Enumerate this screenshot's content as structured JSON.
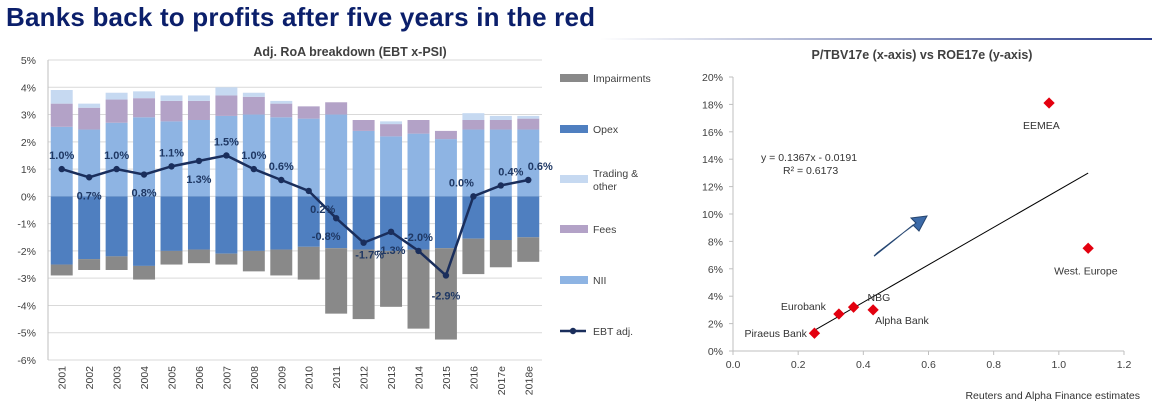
{
  "header": {
    "title": "Banks back to profits after five years in the red"
  },
  "colors": {
    "title": "#0b1f6b",
    "impairments": "#898989",
    "opex": "#4f7fc0",
    "trading": "#c6d9f1",
    "fees": "#b3a2c7",
    "nii": "#8eb4e3",
    "ebt": "#1a2e5c",
    "scatter": "#e3000f"
  },
  "chart_data": [
    {
      "type": "bar",
      "title": "Adj. RoA breakdown  (EBT x-PSI)",
      "categories": [
        "2001",
        "2002",
        "2003",
        "2004",
        "2005",
        "2006",
        "2007",
        "2008",
        "2009",
        "2010",
        "2011",
        "2012",
        "2013",
        "2014",
        "2015",
        "2016",
        "2017e",
        "2018e"
      ],
      "yticks": [
        "5%",
        "4%",
        "3%",
        "2%",
        "1%",
        "0%",
        "-1%",
        "-2%",
        "-3%",
        "-4%",
        "-5%",
        "-6%"
      ],
      "ylim": [
        -6,
        5
      ],
      "series": [
        {
          "name": "NII",
          "values": [
            2.55,
            2.45,
            2.7,
            2.9,
            2.75,
            2.8,
            2.95,
            3.0,
            2.9,
            2.85,
            3.0,
            2.4,
            2.2,
            2.3,
            2.1,
            2.45,
            2.45,
            2.45
          ]
        },
        {
          "name": "Fees",
          "values": [
            0.85,
            0.8,
            0.85,
            0.7,
            0.75,
            0.7,
            0.75,
            0.65,
            0.5,
            0.45,
            0.45,
            0.4,
            0.45,
            0.5,
            0.3,
            0.35,
            0.35,
            0.4
          ]
        },
        {
          "name": "Trading & other",
          "values": [
            0.5,
            0.15,
            0.25,
            0.25,
            0.2,
            0.2,
            0.3,
            0.15,
            0.1,
            0.0,
            0.0,
            0.0,
            0.1,
            0.0,
            0.0,
            0.25,
            0.15,
            0.1
          ]
        },
        {
          "name": "Opex",
          "values": [
            -2.5,
            -2.3,
            -2.2,
            -2.55,
            -2.0,
            -1.95,
            -2.1,
            -2.0,
            -1.95,
            -1.85,
            -1.9,
            -1.95,
            -2.0,
            -1.95,
            -1.9,
            -1.55,
            -1.6,
            -1.5
          ]
        },
        {
          "name": "Impairments",
          "values": [
            -0.4,
            -0.4,
            -0.5,
            -0.5,
            -0.5,
            -0.5,
            -0.4,
            -0.75,
            -0.95,
            -1.2,
            -2.4,
            -2.55,
            -2.05,
            -2.9,
            -3.35,
            -1.3,
            -1.0,
            -0.9
          ]
        }
      ],
      "ebt": {
        "name": "EBT adj.",
        "values": [
          1.0,
          0.7,
          1.0,
          0.8,
          1.1,
          1.3,
          1.5,
          1.0,
          0.6,
          0.2,
          -0.8,
          -1.7,
          -1.3,
          -2.0,
          -2.9,
          0.0,
          0.4,
          0.6
        ],
        "labels": [
          "1.0%",
          "0.7%",
          "1.0%",
          "0.8%",
          "1.1%",
          "1.3%",
          "1.5%",
          "1.0%",
          "0.6%",
          "0.2%",
          "-0.8%",
          "-1.7%",
          "-1.3%",
          "-2.0%",
          "-2.9%",
          "0.0%",
          "0.4%",
          "0.6%"
        ]
      },
      "legend": [
        "Impairments",
        "Opex",
        "Trading & other",
        "Fees",
        "NII",
        "EBT adj."
      ]
    },
    {
      "type": "scatter",
      "title": "P/TBV17e (x-axis)  vs ROE17e (y-axis)",
      "xlim": [
        0,
        1.2
      ],
      "ylim": [
        0,
        20
      ],
      "xticks": [
        "0.0",
        "0.2",
        "0.4",
        "0.6",
        "0.8",
        "1.0",
        "1.2"
      ],
      "yticks": [
        "0%",
        "2%",
        "4%",
        "6%",
        "8%",
        "10%",
        "12%",
        "14%",
        "16%",
        "18%",
        "20%"
      ],
      "points": [
        {
          "label": "Piraeus Bank",
          "x": 0.25,
          "y": 1.3
        },
        {
          "label": "Eurobank",
          "x": 0.325,
          "y": 2.7
        },
        {
          "label": "NBG",
          "x": 0.37,
          "y": 3.2
        },
        {
          "label": "Alpha Bank",
          "x": 0.43,
          "y": 3.0
        },
        {
          "label": "EEMEA",
          "x": 0.97,
          "y": 18.1
        },
        {
          "label": "West. Europe",
          "x": 1.09,
          "y": 7.5
        }
      ],
      "trendline": {
        "slope": 0.1367,
        "intercept": -0.0191,
        "x_range": [
          0.25,
          1.09
        ]
      },
      "equation": "y = 0.1367x - 0.0191",
      "r2": "R² = 0.6173",
      "source": "Reuters and Alpha Finance estimates"
    }
  ]
}
